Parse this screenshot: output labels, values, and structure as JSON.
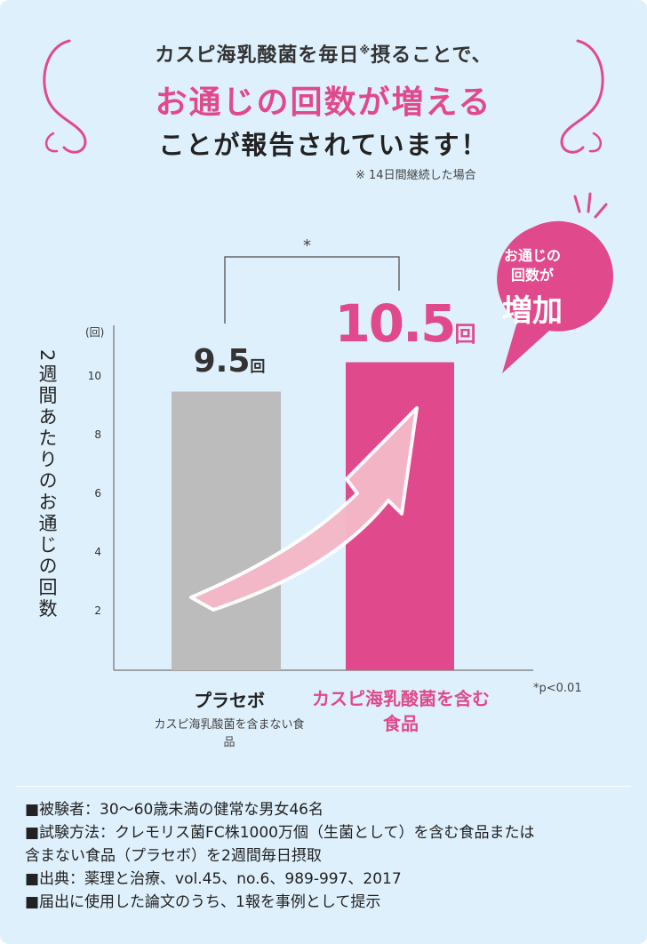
{
  "headline": {
    "line1_main": "カスピ海乳酸菌を毎日",
    "line1_mark": "※",
    "line1_end": "摂ることで、",
    "line2": "お通じの回数が増える",
    "line3": "ことが報告されています！",
    "note": "※ 14日間継続した場合"
  },
  "bubble": {
    "line1": "お通じの",
    "line2": "回数が",
    "line3": "増加"
  },
  "significance": {
    "mark": "*",
    "note": "*p<0.01"
  },
  "colors": {
    "background": "#def0fc",
    "accent": "#e04a8c",
    "placebo_bar": "#bcbcbc",
    "arrow": "#f4b8c8"
  },
  "chart_data": {
    "type": "bar",
    "ylabel": "2週間あたりのお通じの回数",
    "yunit": "(回)",
    "yticks": [
      "2",
      "4",
      "6",
      "8",
      "10"
    ],
    "ylim": [
      0,
      12
    ],
    "categories": [
      "プラセボ",
      "カスピ海乳酸菌を含む食品"
    ],
    "category_subtitles": [
      "カスピ海乳酸菌を含まない食品",
      ""
    ],
    "values": [
      9.5,
      10.5
    ],
    "value_labels": [
      "9.5",
      "10.5"
    ],
    "value_unit": "回",
    "bar_colors": [
      "#bcbcbc",
      "#e04a8c"
    ]
  },
  "footer": [
    "■被験者：30〜60歳未満の健常な男女46名",
    "■試験方法：クレモリス菌FC株1000万個（生菌として）を含む食品または",
    "含まない食品（プラセボ）を2週間毎日摂取",
    "■出典：薬理と治療、vol.45、no.6、989-997、2017",
    "■届出に使用した論文のうち、1報を事例として提示"
  ]
}
